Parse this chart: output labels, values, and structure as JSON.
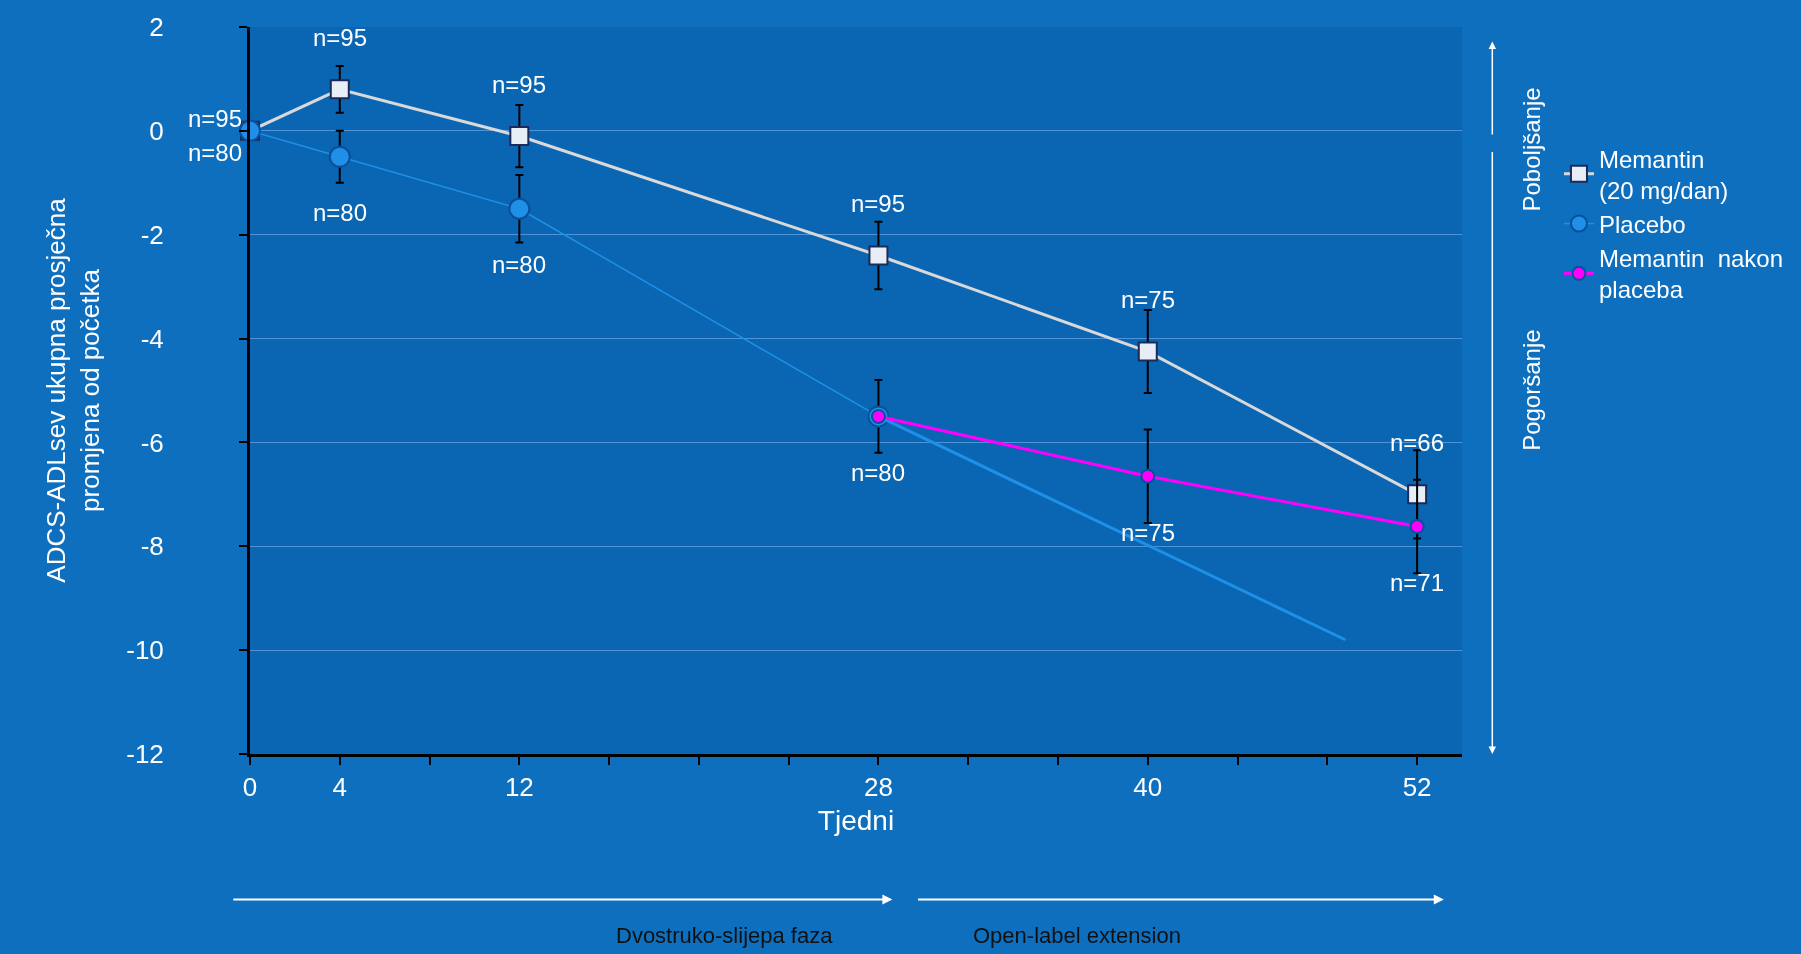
{
  "chart_data": {
    "type": "line",
    "xlabel": "Tjedni",
    "ylabel": "ADCS-ADLsev ukupna prosječna\npromjena od početka",
    "xlim": [
      0,
      54
    ],
    "xticks": [
      0,
      4,
      {
        "value": 8,
        "label": null
      },
      12,
      {
        "value": 16,
        "label": null
      },
      {
        "value": 20,
        "label": null
      },
      {
        "value": 24,
        "label": null
      },
      28,
      {
        "value": 32,
        "label": null
      },
      {
        "value": 36,
        "label": null
      },
      40,
      {
        "value": 44,
        "label": null
      },
      {
        "value": 48,
        "label": null
      },
      52
    ],
    "ylim": [
      -12,
      2
    ],
    "yticks": [
      -12,
      -10,
      -8,
      -6,
      -4,
      -2,
      0,
      2
    ],
    "grid": "y",
    "legend": "right",
    "series": [
      {
        "name": "Memantin\n(20 mg/dan)",
        "color": "#d9d9d9",
        "marker": "square",
        "x": [
          0,
          4,
          12,
          28,
          40,
          52
        ],
        "values": [
          0,
          0.8,
          -0.1,
          -2.4,
          -4.25,
          -7.0
        ],
        "errors": [
          null,
          0.45,
          0.6,
          0.65,
          0.8,
          0.85
        ]
      },
      {
        "name": "Placebo",
        "color": "#1e90e8",
        "marker": "circle",
        "x": [
          0,
          4,
          12,
          28
        ],
        "values": [
          0,
          -0.5,
          -1.5,
          -5.5
        ],
        "errors": [
          null,
          0.5,
          0.65,
          0.7
        ]
      },
      {
        "color": "#1e90e8",
        "marker": "none",
        "x": [
          28,
          48.8
        ],
        "values": [
          -5.5,
          -9.8
        ]
      },
      {
        "name": "Memantin  nakon\nplaceba",
        "color": "#ff00ff",
        "marker": "circle",
        "x": [
          28,
          40,
          52
        ],
        "values": [
          -5.5,
          -6.65,
          -7.62
        ],
        "errors": [
          null,
          0.9,
          0.9
        ]
      }
    ],
    "annotations": [
      {
        "text": "n=95",
        "x": 0,
        "y": 0
      },
      {
        "text": "n=80",
        "x": 0,
        "y": 0
      },
      {
        "text": "n=95",
        "x": 4,
        "y": 0.8
      },
      {
        "text": "n=80",
        "x": 4,
        "y": -0.5
      },
      {
        "text": "n=95",
        "x": 12,
        "y": -0.1
      },
      {
        "text": "n=80",
        "x": 12,
        "y": -1.5
      },
      {
        "text": "n=95",
        "x": 28,
        "y": -2.4
      },
      {
        "text": "n=80",
        "x": 28,
        "y": -5.5
      },
      {
        "text": "n=75",
        "x": 40,
        "y": -4.25
      },
      {
        "text": "n=75",
        "x": 40,
        "y": -6.65
      },
      {
        "text": "n=66",
        "x": 52,
        "y": -7.0
      },
      {
        "text": "n=71",
        "x": 52,
        "y": -7.62
      },
      "Poboljšanje",
      "Pogoršanje",
      "Dvostruko-slijepa faza",
      "Open-label extension"
    ]
  }
}
